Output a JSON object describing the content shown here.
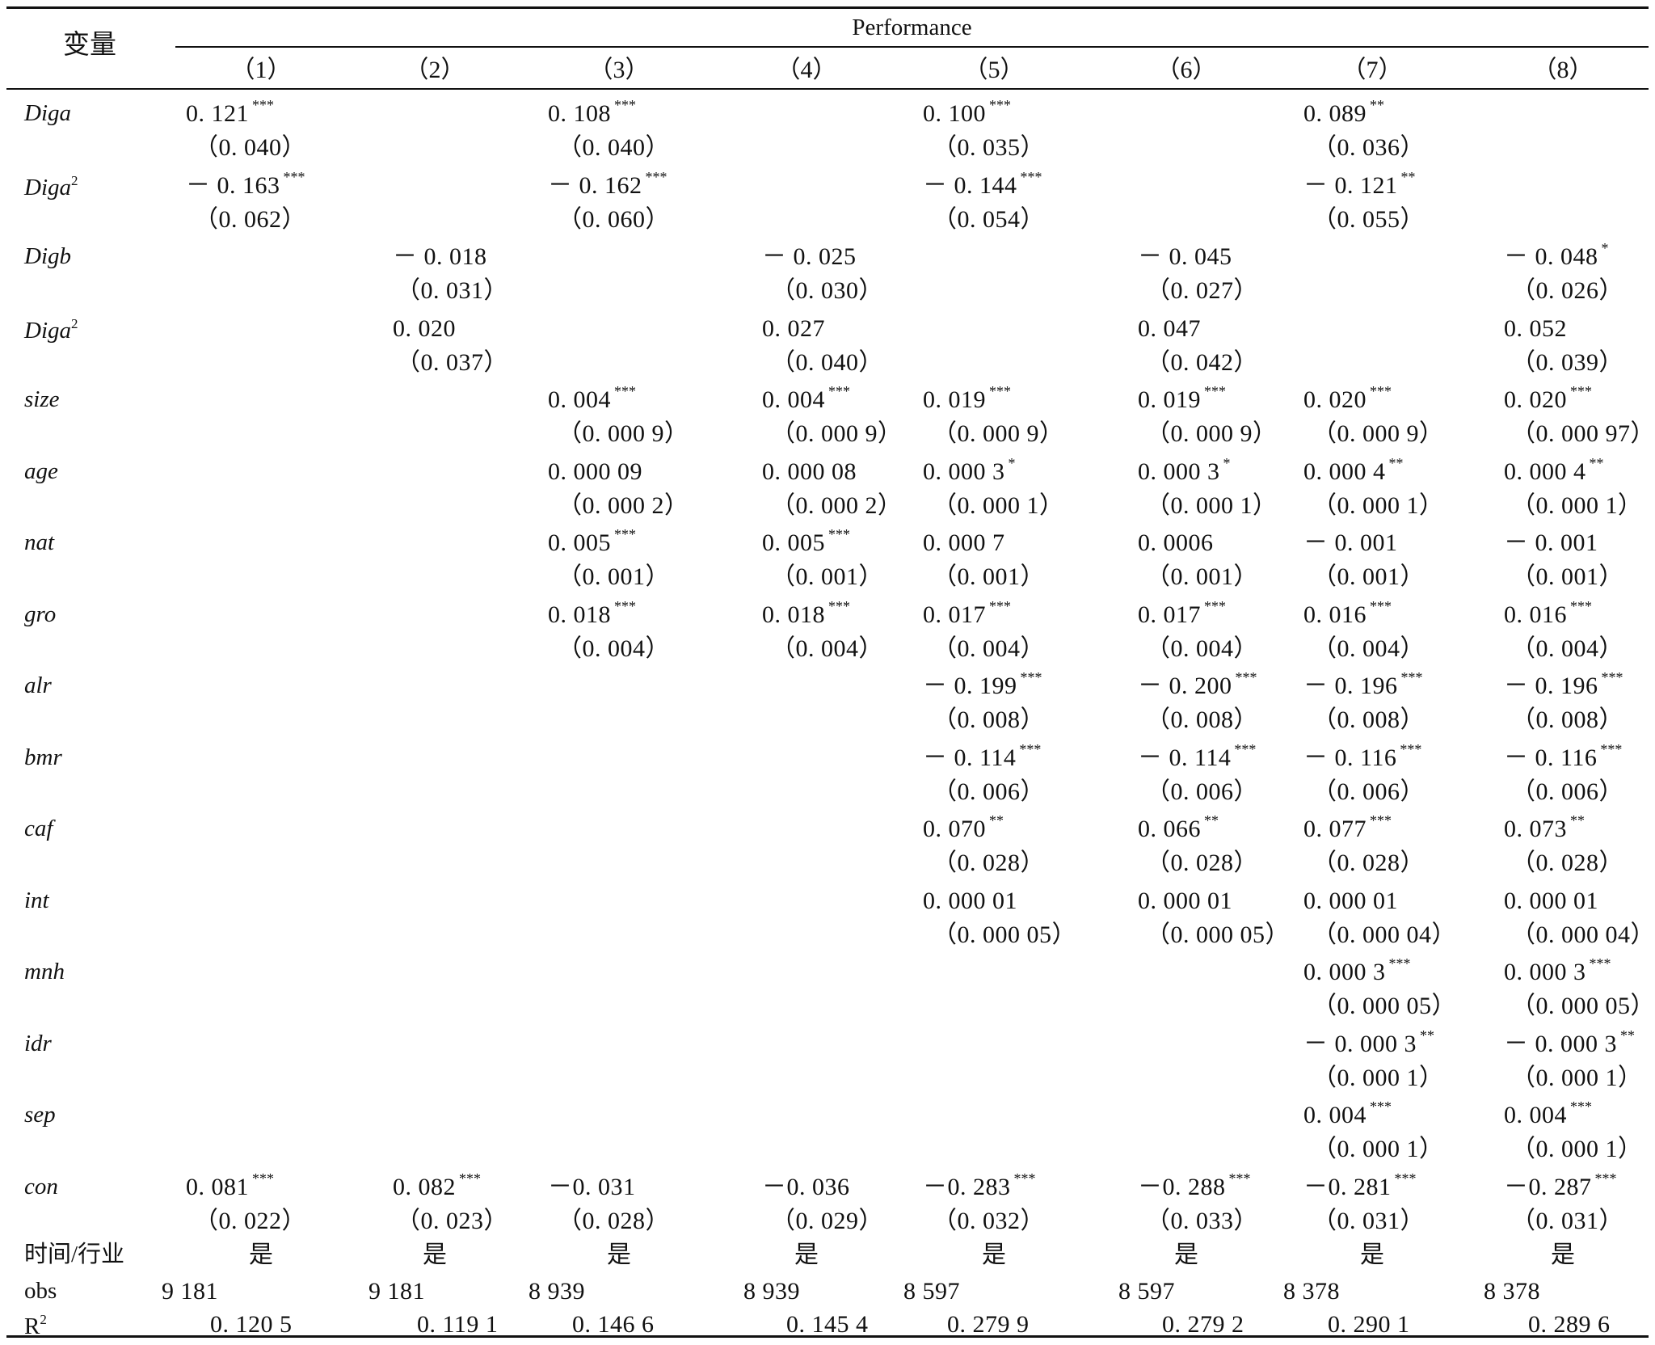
{
  "header": {
    "var_label": "变量",
    "group_label": "Performance",
    "columns": [
      "（1）",
      "（2）",
      "（3）",
      "（4）",
      "（5）",
      "（6）",
      "（7）",
      "（8）"
    ]
  },
  "rows": [
    {
      "name": "Diga",
      "sup": "",
      "italic": true,
      "coefs": [
        [
          "0. 121",
          "***"
        ],
        [
          "",
          ""
        ],
        [
          "0. 108",
          "***"
        ],
        [
          "",
          ""
        ],
        [
          "0. 100",
          "***"
        ],
        [
          "",
          ""
        ],
        [
          "0. 089",
          "**"
        ],
        [
          "",
          ""
        ]
      ],
      "ses": [
        "（0. 040）",
        "",
        "（0. 040）",
        "",
        "（0. 035）",
        "",
        "（0. 036）",
        ""
      ]
    },
    {
      "name": "Diga",
      "sup": "2",
      "italic": true,
      "coefs": [
        [
          "－ 0. 163",
          "***"
        ],
        [
          "",
          ""
        ],
        [
          "－ 0. 162",
          "***"
        ],
        [
          "",
          ""
        ],
        [
          "－ 0. 144",
          "***"
        ],
        [
          "",
          ""
        ],
        [
          "－ 0. 121",
          "**"
        ],
        [
          "",
          ""
        ]
      ],
      "ses": [
        "（0. 062）",
        "",
        "（0. 060）",
        "",
        "（0. 054）",
        "",
        "（0. 055）",
        ""
      ]
    },
    {
      "name": "Digb",
      "sup": "",
      "italic": true,
      "coefs": [
        [
          "",
          ""
        ],
        [
          "－ 0. 018",
          ""
        ],
        [
          "",
          ""
        ],
        [
          "－ 0. 025",
          ""
        ],
        [
          "",
          ""
        ],
        [
          "－ 0. 045",
          ""
        ],
        [
          "",
          ""
        ],
        [
          "－ 0. 048",
          "*"
        ]
      ],
      "ses": [
        "",
        "（0. 031）",
        "",
        "（0. 030）",
        "",
        "（0. 027）",
        "",
        "（0. 026）"
      ]
    },
    {
      "name": "Diga",
      "sup": "2",
      "italic": true,
      "coefs": [
        [
          "",
          ""
        ],
        [
          "0. 020",
          ""
        ],
        [
          "",
          ""
        ],
        [
          "0. 027",
          ""
        ],
        [
          "",
          ""
        ],
        [
          "0. 047",
          ""
        ],
        [
          "",
          ""
        ],
        [
          "0. 052",
          ""
        ]
      ],
      "ses": [
        "",
        "（0. 037）",
        "",
        "（0. 040）",
        "",
        "（0. 042）",
        "",
        "（0. 039）"
      ]
    },
    {
      "name": "size",
      "sup": "",
      "italic": true,
      "coefs": [
        [
          "",
          ""
        ],
        [
          "",
          ""
        ],
        [
          "0. 004",
          "***"
        ],
        [
          "0. 004",
          "***"
        ],
        [
          "0. 019",
          "***"
        ],
        [
          "0. 019",
          "***"
        ],
        [
          "0. 020",
          "***"
        ],
        [
          "0. 020",
          "***"
        ]
      ],
      "ses": [
        "",
        "",
        "（0. 000 9）",
        "（0. 000 9）",
        "（0. 000 9）",
        "（0. 000 9）",
        "（0. 000 9）",
        "（0. 000 97）"
      ]
    },
    {
      "name": "age",
      "sup": "",
      "italic": true,
      "coefs": [
        [
          "",
          ""
        ],
        [
          "",
          ""
        ],
        [
          "0. 000 09",
          ""
        ],
        [
          "0. 000 08",
          ""
        ],
        [
          "0. 000 3",
          "*"
        ],
        [
          "0. 000 3",
          "*"
        ],
        [
          "0. 000 4",
          "**"
        ],
        [
          "0. 000 4",
          "**"
        ]
      ],
      "ses": [
        "",
        "",
        "（0. 000 2）",
        "（0. 000 2）",
        "（0. 000 1）",
        "（0. 000 1）",
        "（0. 000 1）",
        "（0. 000 1）"
      ]
    },
    {
      "name": "nat",
      "sup": "",
      "italic": true,
      "coefs": [
        [
          "",
          ""
        ],
        [
          "",
          ""
        ],
        [
          "0. 005",
          "***"
        ],
        [
          "0. 005",
          "***"
        ],
        [
          "0. 000 7",
          ""
        ],
        [
          "0. 0006",
          ""
        ],
        [
          "－ 0. 001",
          ""
        ],
        [
          "－ 0. 001",
          ""
        ]
      ],
      "ses": [
        "",
        "",
        "（0. 001）",
        "（0. 001）",
        "（0. 001）",
        "（0. 001）",
        "（0. 001）",
        "（0. 001）"
      ]
    },
    {
      "name": "gro",
      "sup": "",
      "italic": true,
      "coefs": [
        [
          "",
          ""
        ],
        [
          "",
          ""
        ],
        [
          "0. 018",
          "***"
        ],
        [
          "0. 018",
          "***"
        ],
        [
          "0. 017",
          "***"
        ],
        [
          "0. 017",
          "***"
        ],
        [
          "0. 016",
          "***"
        ],
        [
          "0. 016",
          "***"
        ]
      ],
      "ses": [
        "",
        "",
        "（0. 004）",
        "（0. 004）",
        "（0. 004）",
        "（0. 004）",
        "（0. 004）",
        "（0. 004）"
      ]
    },
    {
      "name": "alr",
      "sup": "",
      "italic": true,
      "coefs": [
        [
          "",
          ""
        ],
        [
          "",
          ""
        ],
        [
          "",
          ""
        ],
        [
          "",
          ""
        ],
        [
          "－ 0. 199",
          "***"
        ],
        [
          "－ 0. 200",
          "***"
        ],
        [
          "－ 0. 196",
          "***"
        ],
        [
          "－ 0. 196",
          "***"
        ]
      ],
      "ses": [
        "",
        "",
        "",
        "",
        "（0. 008）",
        "（0. 008）",
        "（0. 008）",
        "（0. 008）"
      ]
    },
    {
      "name": "bmr",
      "sup": "",
      "italic": true,
      "coefs": [
        [
          "",
          ""
        ],
        [
          "",
          ""
        ],
        [
          "",
          ""
        ],
        [
          "",
          ""
        ],
        [
          "－ 0. 114",
          "***"
        ],
        [
          "－ 0. 114",
          "***"
        ],
        [
          "－ 0. 116",
          "***"
        ],
        [
          "－ 0. 116",
          "***"
        ]
      ],
      "ses": [
        "",
        "",
        "",
        "",
        "（0. 006）",
        "（0. 006）",
        "（0. 006）",
        "（0. 006）"
      ]
    },
    {
      "name": "caf",
      "sup": "",
      "italic": true,
      "coefs": [
        [
          "",
          ""
        ],
        [
          "",
          ""
        ],
        [
          "",
          ""
        ],
        [
          "",
          ""
        ],
        [
          "0. 070",
          "**"
        ],
        [
          "0. 066",
          "**"
        ],
        [
          "0. 077",
          "***"
        ],
        [
          "0. 073",
          "**"
        ]
      ],
      "ses": [
        "",
        "",
        "",
        "",
        "（0. 028）",
        "（0. 028）",
        "（0. 028）",
        "（0. 028）"
      ]
    },
    {
      "name": "int",
      "sup": "",
      "italic": true,
      "coefs": [
        [
          "",
          ""
        ],
        [
          "",
          ""
        ],
        [
          "",
          ""
        ],
        [
          "",
          ""
        ],
        [
          "0. 000 01",
          ""
        ],
        [
          "0. 000 01",
          ""
        ],
        [
          "0. 000 01",
          ""
        ],
        [
          "0. 000 01",
          ""
        ]
      ],
      "ses": [
        "",
        "",
        "",
        "",
        "（0. 000 05）",
        "（0. 000 05）",
        "（0. 000 04）",
        "（0. 000 04）"
      ]
    },
    {
      "name": "mnh",
      "sup": "",
      "italic": true,
      "coefs": [
        [
          "",
          ""
        ],
        [
          "",
          ""
        ],
        [
          "",
          ""
        ],
        [
          "",
          ""
        ],
        [
          "",
          ""
        ],
        [
          "",
          ""
        ],
        [
          "0. 000 3",
          "***"
        ],
        [
          "0. 000 3",
          "***"
        ]
      ],
      "ses": [
        "",
        "",
        "",
        "",
        "",
        "",
        "（0. 000 05）",
        "（0. 000 05）"
      ]
    },
    {
      "name": "idr",
      "sup": "",
      "italic": true,
      "coefs": [
        [
          "",
          ""
        ],
        [
          "",
          ""
        ],
        [
          "",
          ""
        ],
        [
          "",
          ""
        ],
        [
          "",
          ""
        ],
        [
          "",
          ""
        ],
        [
          "－ 0. 000 3",
          "**"
        ],
        [
          "－ 0. 000 3",
          "**"
        ]
      ],
      "ses": [
        "",
        "",
        "",
        "",
        "",
        "",
        "（0. 000 1）",
        "（0. 000 1）"
      ]
    },
    {
      "name": "sep",
      "sup": "",
      "italic": true,
      "coefs": [
        [
          "",
          ""
        ],
        [
          "",
          ""
        ],
        [
          "",
          ""
        ],
        [
          "",
          ""
        ],
        [
          "",
          ""
        ],
        [
          "",
          ""
        ],
        [
          "0. 004",
          "***"
        ],
        [
          "0. 004",
          "***"
        ]
      ],
      "ses": [
        "",
        "",
        "",
        "",
        "",
        "",
        "（0. 000 1）",
        "（0. 000 1）"
      ]
    },
    {
      "name": "con",
      "sup": "",
      "italic": true,
      "coefs": [
        [
          "0. 081",
          "***"
        ],
        [
          "0. 082",
          "***"
        ],
        [
          "－0. 031",
          ""
        ],
        [
          "－0. 036",
          ""
        ],
        [
          "－0. 283",
          "***"
        ],
        [
          "－0. 288",
          "***"
        ],
        [
          "－0. 281",
          "***"
        ],
        [
          "－0. 287",
          "***"
        ]
      ],
      "ses": [
        "（0. 022）",
        "（0. 023）",
        "（0. 028）",
        "（0. 029）",
        "（0. 032）",
        "（0. 033）",
        "（0. 031）",
        "（0. 031）"
      ]
    }
  ],
  "footer": {
    "fe": {
      "name": "时间/行业",
      "values": [
        "是",
        "是",
        "是",
        "是",
        "是",
        "是",
        "是",
        "是"
      ]
    },
    "obs": {
      "name": "obs",
      "values": [
        "9 181",
        "9 181",
        "8 939",
        "8 939",
        "8 597",
        "8 597",
        "8 378",
        "8 378"
      ]
    },
    "r2": {
      "name": "R",
      "sup": "2",
      "values": [
        "0. 120 5",
        "0. 119 1",
        "0. 146 6",
        "0. 145 4",
        "0. 279 9",
        "0. 279 2",
        "0. 290 1",
        "0. 289 6"
      ]
    }
  }
}
